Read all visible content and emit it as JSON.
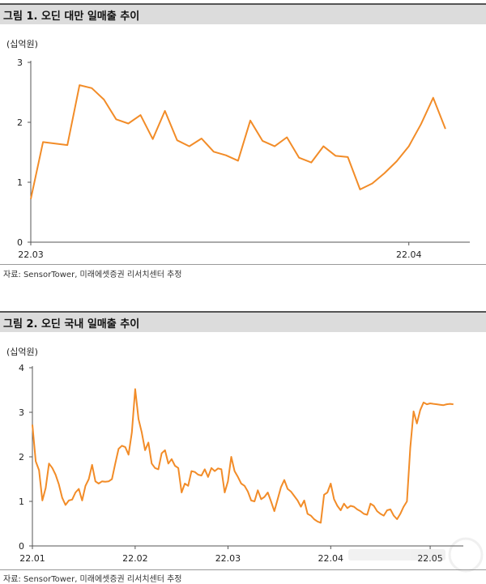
{
  "charts": [
    {
      "figure_title": "그림 1. 오딘 대만 일매출 추이",
      "source": "자료: SensorTower, 미래에셋증권 리서치센터 추정"
    },
    {
      "figure_title": "그림 2. 오딘 국내 일매출 추이",
      "source": "자료: SensorTower, 미래에셋증권 리서치센터 추정"
    }
  ],
  "colors": {
    "line": "#f28c28",
    "axis": "#555555",
    "title_bar": "#dcdcdc"
  },
  "chart_data": [
    {
      "type": "line",
      "title": "그림 1. 오딘 대만 일매출 추이",
      "unit_label": "(십억원)",
      "ylim": [
        0,
        3
      ],
      "yticks": [
        0,
        1,
        2,
        3
      ],
      "xlim": [
        0,
        36
      ],
      "xticks": [
        {
          "x": 0,
          "label": "22.03"
        },
        {
          "x": 31,
          "label": "22.04"
        }
      ],
      "grid": false,
      "series": [
        {
          "x": [
            0,
            1,
            3,
            4,
            5,
            6,
            7,
            8,
            9,
            10,
            11,
            12,
            13,
            14,
            15,
            16,
            17,
            18,
            19,
            20,
            21,
            22,
            23,
            24,
            25,
            26,
            27,
            28,
            29,
            30,
            31,
            32,
            33,
            34
          ],
          "values": [
            0.72,
            1.67,
            1.62,
            2.62,
            2.57,
            2.38,
            2.05,
            1.98,
            2.12,
            1.72,
            2.19,
            1.7,
            1.6,
            1.73,
            1.51,
            1.45,
            1.36,
            2.03,
            1.69,
            1.6,
            1.75,
            1.41,
            1.33,
            1.6,
            1.44,
            1.42,
            0.88,
            0.98,
            1.15,
            1.35,
            1.6,
            1.97,
            2.41,
            1.89
          ]
        }
      ]
    },
    {
      "type": "line",
      "title": "그림 2. 오딘 국내 일매출 추이",
      "unit_label": "(십억원)",
      "ylim": [
        0,
        4
      ],
      "yticks": [
        0,
        1,
        2,
        3,
        4
      ],
      "xlim": [
        0,
        130
      ],
      "xticks": [
        {
          "x": 0,
          "label": "22.01"
        },
        {
          "x": 31,
          "label": "22.02"
        },
        {
          "x": 59,
          "label": "22.03"
        },
        {
          "x": 90,
          "label": "22.04"
        },
        {
          "x": 120,
          "label": "22.05"
        }
      ],
      "grid": false,
      "series": [
        {
          "x": [
            0,
            1,
            2,
            3,
            4,
            5,
            6,
            7,
            8,
            9,
            10,
            11,
            12,
            13,
            14,
            15,
            16,
            17,
            18,
            19,
            20,
            21,
            22,
            23,
            24,
            25,
            26,
            27,
            28,
            29,
            30,
            31,
            32,
            33,
            34,
            35,
            36,
            37,
            38,
            39,
            40,
            41,
            42,
            43,
            44,
            45,
            46,
            47,
            48,
            49,
            50,
            51,
            52,
            53,
            54,
            55,
            56,
            57,
            58,
            59,
            60,
            61,
            62,
            63,
            64,
            65,
            66,
            67,
            68,
            69,
            70,
            71,
            72,
            73,
            74,
            75,
            76,
            77,
            78,
            79,
            80,
            81,
            82,
            83,
            84,
            85,
            86,
            87,
            88,
            89,
            90,
            91,
            92,
            93,
            94,
            95,
            96,
            97,
            98,
            99,
            100,
            101,
            102,
            103,
            104,
            105,
            106,
            107,
            108,
            109,
            110,
            111,
            112,
            113,
            114,
            115,
            116,
            117,
            118,
            119,
            120,
            121,
            122,
            123,
            124,
            125,
            126,
            127
          ],
          "values": [
            2.72,
            1.9,
            1.7,
            1.02,
            1.3,
            1.85,
            1.75,
            1.6,
            1.38,
            1.08,
            0.92,
            1.02,
            1.04,
            1.2,
            1.28,
            1.02,
            1.35,
            1.5,
            1.82,
            1.45,
            1.4,
            1.45,
            1.44,
            1.45,
            1.5,
            1.85,
            2.18,
            2.25,
            2.22,
            2.05,
            2.55,
            3.52,
            2.85,
            2.55,
            2.15,
            2.32,
            1.85,
            1.75,
            1.72,
            2.08,
            2.15,
            1.85,
            1.95,
            1.8,
            1.75,
            1.2,
            1.4,
            1.35,
            1.68,
            1.66,
            1.6,
            1.58,
            1.72,
            1.55,
            1.75,
            1.68,
            1.74,
            1.72,
            1.2,
            1.45,
            2.0,
            1.68,
            1.55,
            1.4,
            1.35,
            1.22,
            1.02,
            1.0,
            1.25,
            1.05,
            1.1,
            1.2,
            1.0,
            0.78,
            1.05,
            1.32,
            1.48,
            1.28,
            1.22,
            1.12,
            1.02,
            0.88,
            1.02,
            0.72,
            0.68,
            0.6,
            0.55,
            0.52,
            1.15,
            1.2,
            1.4,
            1.05,
            0.9,
            0.8,
            0.95,
            0.85,
            0.9,
            0.88,
            0.82,
            0.78,
            0.72,
            0.7,
            0.95,
            0.9,
            0.78,
            0.72,
            0.68,
            0.8,
            0.82,
            0.68,
            0.6,
            0.72,
            0.88,
            1.0,
            2.2,
            3.02,
            2.75,
            3.05,
            3.22,
            3.18,
            3.2,
            3.19,
            3.18,
            3.17,
            3.16,
            3.18,
            3.19,
            3.18
          ]
        }
      ]
    }
  ]
}
